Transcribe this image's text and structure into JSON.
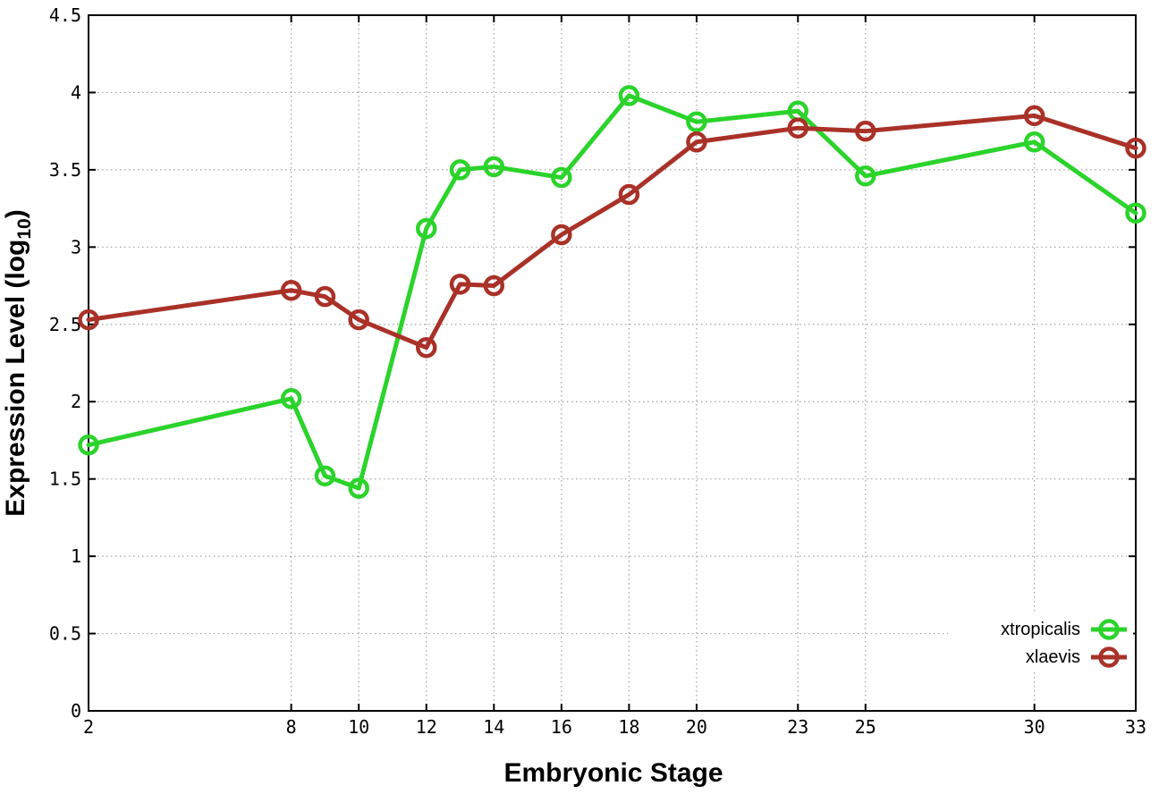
{
  "axes": {
    "x_title": "Embryonic Stage",
    "y_title_main": "Expression Level (log",
    "y_title_sub": "10",
    "y_title_close": ")"
  },
  "chart_data": {
    "type": "line",
    "x": [
      2,
      8,
      9,
      10,
      12,
      13,
      14,
      16,
      18,
      20,
      23,
      25,
      30,
      33
    ],
    "series": [
      {
        "name": "xtropicalis",
        "color": "#2bd32b",
        "values": [
          1.72,
          2.02,
          1.52,
          1.44,
          3.12,
          3.5,
          3.52,
          3.45,
          3.98,
          3.81,
          3.88,
          3.46,
          3.68,
          3.22
        ]
      },
      {
        "name": "xlaevis",
        "color": "#a93128",
        "values": [
          2.53,
          2.72,
          2.68,
          2.53,
          2.35,
          2.76,
          2.75,
          3.08,
          3.34,
          3.68,
          3.77,
          3.75,
          3.85,
          3.64
        ]
      }
    ],
    "title": "",
    "xlabel": "Embryonic Stage",
    "ylabel": "Expression Level (log10)",
    "xlim": [
      2,
      33
    ],
    "ylim": [
      0,
      4.5
    ],
    "x_ticks": [
      2,
      8,
      10,
      12,
      14,
      16,
      18,
      20,
      23,
      25,
      30,
      33
    ],
    "y_tick_step": 0.5,
    "grid": true,
    "legend_position": "bottom-right",
    "marker": "open-circle"
  },
  "legend": {
    "entries": [
      "xtropicalis",
      "xlaevis"
    ]
  },
  "colors": {
    "background": "#ffffff",
    "axis": "#000000",
    "grid": "#a0a0a0",
    "text": "#000000"
  }
}
